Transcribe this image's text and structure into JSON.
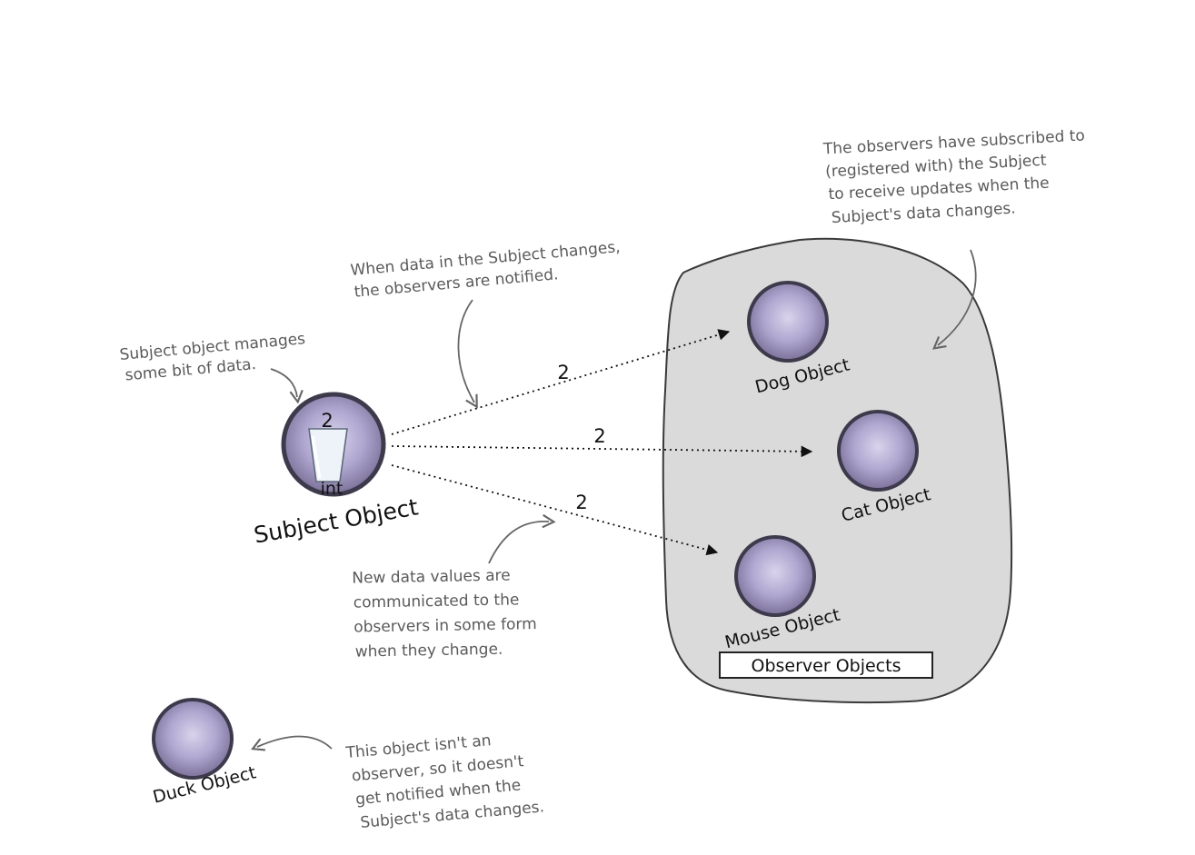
{
  "annotations": {
    "subject_manages": [
      "Subject object manages",
      "some bit of data."
    ],
    "notified": [
      "When data in the Subject changes,",
      "the observers are notified."
    ],
    "subscribed": [
      "The observers have subscribed to",
      "(registered with) the Subject",
      "to receive updates when the",
      "Subject's data changes."
    ],
    "new_values": [
      "New data values are",
      "communicated to the",
      "observers in some form",
      "when they change."
    ],
    "not_observer": [
      "This object isn't an",
      "observer, so it doesn't",
      "get notified when the",
      "Subject's data changes."
    ]
  },
  "subject": {
    "label": "Subject Object",
    "value": "2",
    "type": "int"
  },
  "observers": {
    "group_label": "Observer Objects",
    "dog": "Dog Object",
    "cat": "Cat Object",
    "mouse": "Mouse Object"
  },
  "duck": {
    "label": "Duck Object"
  },
  "messages": {
    "dog": "2",
    "cat": "2",
    "mouse": "2"
  },
  "colors": {
    "blob_fill": "#dadada",
    "sphere": "#a79fc6",
    "sphere_edge": "#3d3a4c",
    "annotation": "#5a5a5a"
  }
}
